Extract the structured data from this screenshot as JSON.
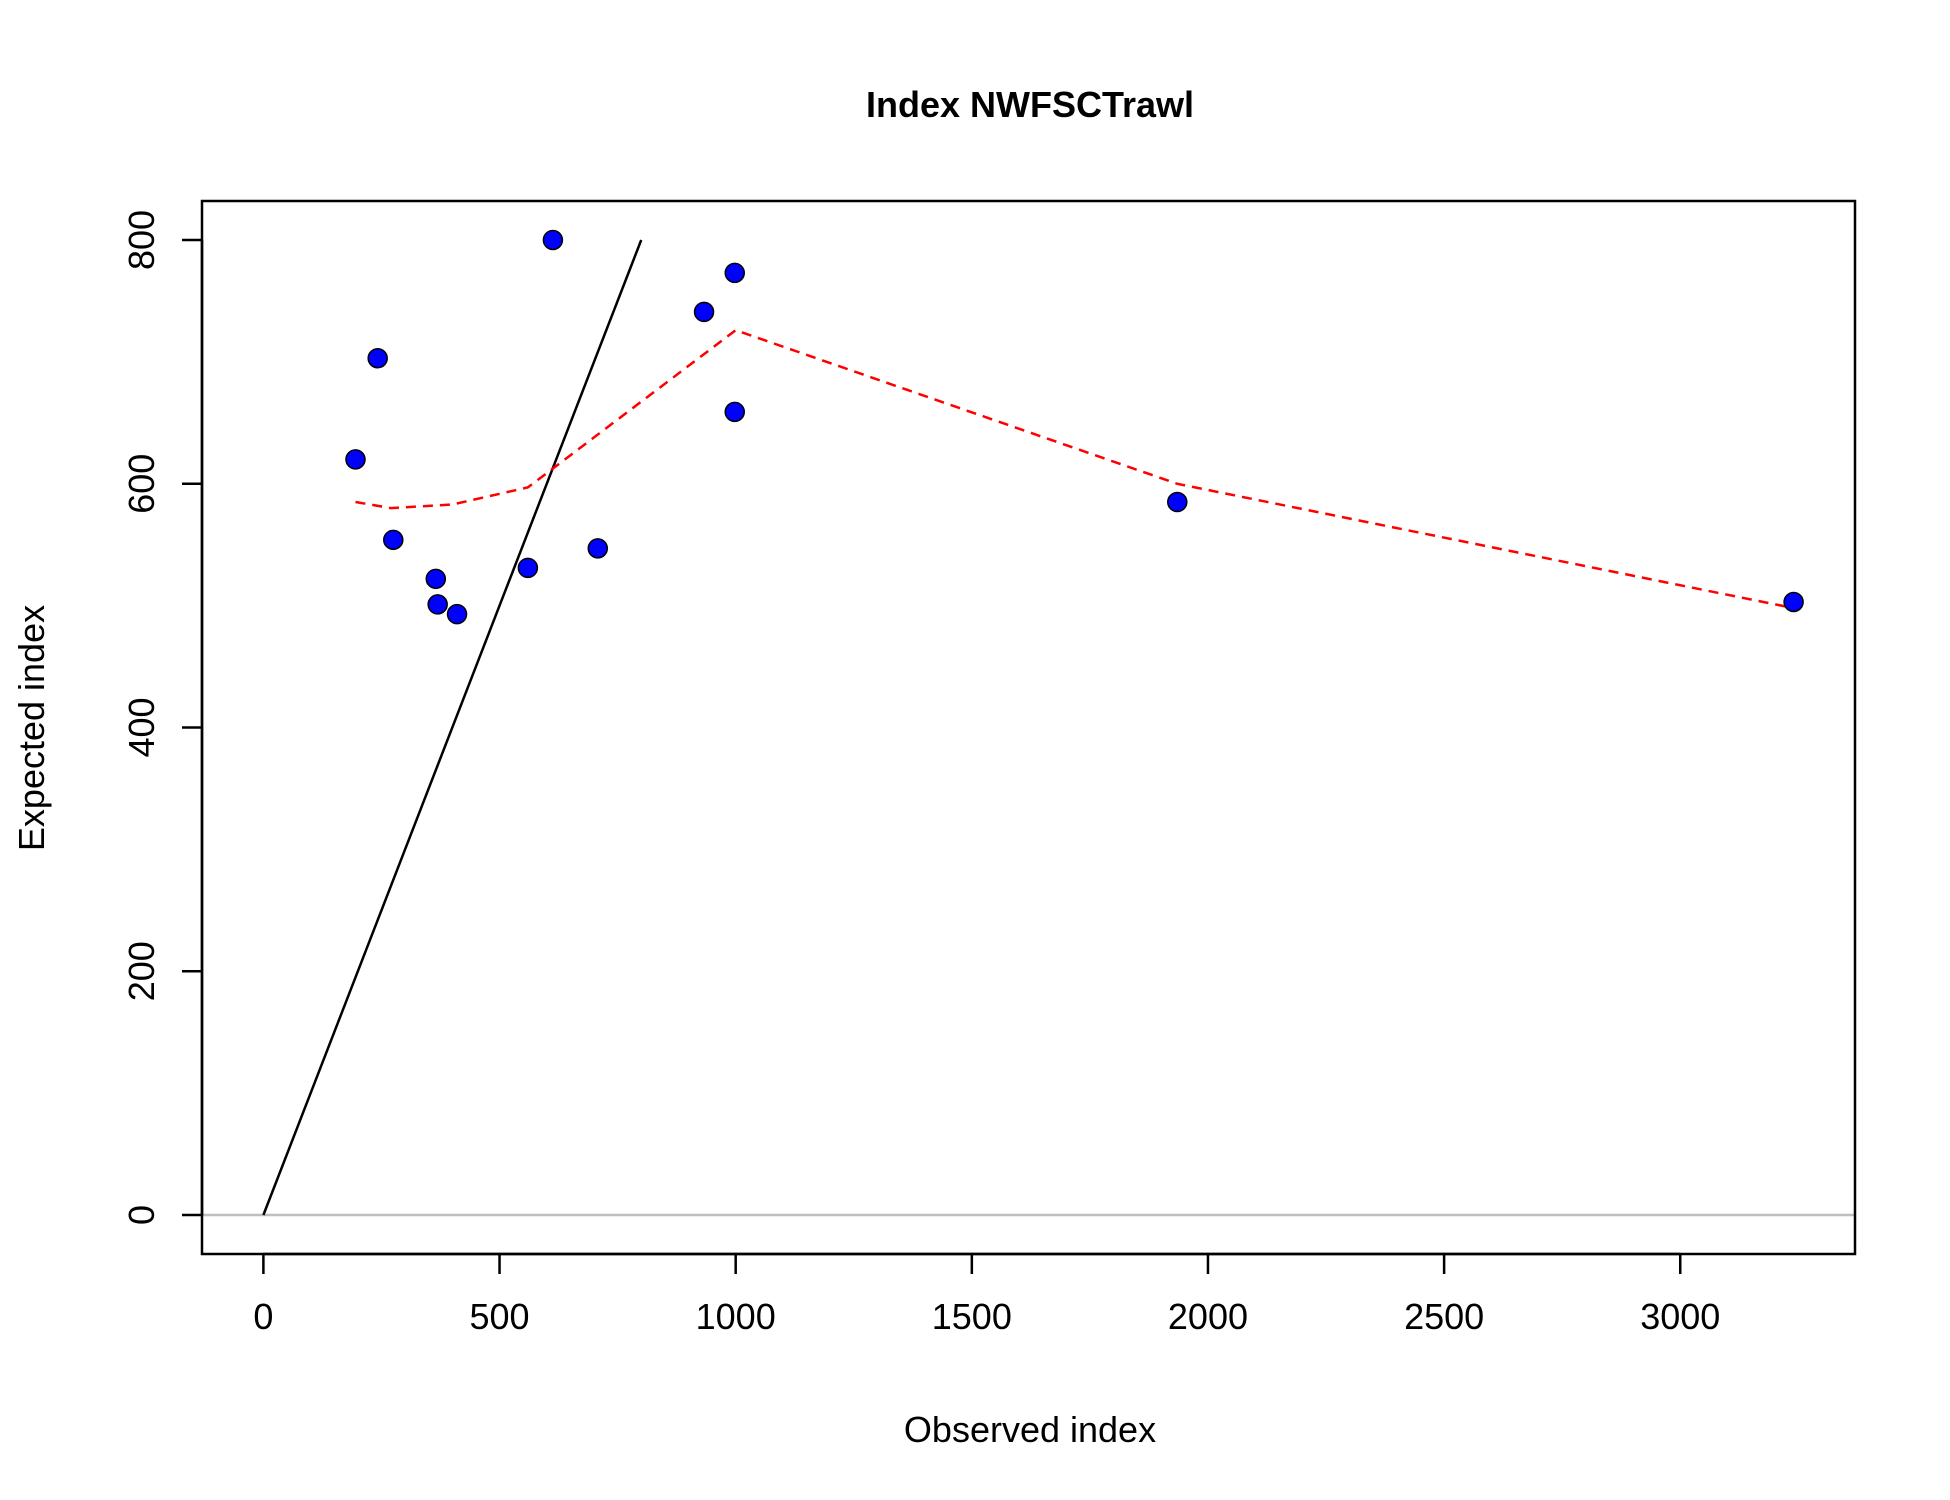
{
  "chart_data": {
    "type": "scatter",
    "title": "Index NWFSCTrawl",
    "xlabel": "Observed index",
    "ylabel": "Expected index",
    "xlim": [
      -130,
      3370
    ],
    "ylim": [
      -32,
      832
    ],
    "x_ticks": [
      0,
      500,
      1000,
      1500,
      2000,
      2500,
      3000
    ],
    "y_ticks": [
      0,
      200,
      400,
      600,
      800
    ],
    "grid": false,
    "legend": "none",
    "points": {
      "x": [
        195,
        242,
        275,
        365,
        369,
        410,
        560,
        613,
        708,
        933,
        998,
        998,
        1935,
        3240
      ],
      "y": [
        620,
        703,
        554,
        522,
        501,
        493,
        531,
        800,
        547,
        741,
        773,
        659,
        585,
        503
      ],
      "fill_color": "#0000ff",
      "edge_color": "#000000"
    },
    "identity_line": {
      "x": [
        0,
        800
      ],
      "y": [
        0,
        800
      ],
      "color": "#000000"
    },
    "zero_line": {
      "y": 0,
      "color": "#bebebe"
    },
    "smoother": {
      "x": [
        195,
        270,
        400,
        560,
        1000,
        1935,
        3240
      ],
      "y": [
        585,
        580,
        583,
        597,
        726,
        600,
        498
      ],
      "color": "#ff0000",
      "style": "dashed"
    }
  }
}
